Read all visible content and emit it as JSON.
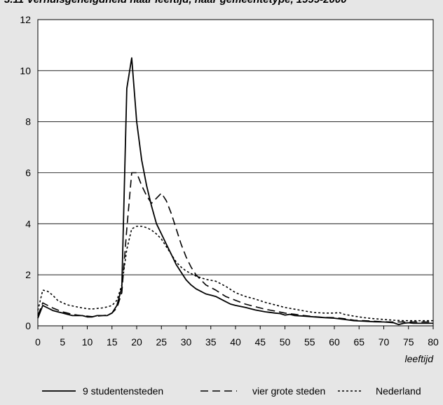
{
  "title_fragment": "3.11 Verhuisgeneigdheid naar leeftijd, naar gemeentetype, 1999-2000",
  "chart_data": {
    "type": "line",
    "xlabel": "leeftijd",
    "ylabel": "",
    "xlim": [
      0,
      80
    ],
    "ylim": [
      0,
      12
    ],
    "xticks": [
      0,
      5,
      10,
      15,
      20,
      25,
      30,
      35,
      40,
      45,
      50,
      55,
      60,
      65,
      70,
      75,
      80
    ],
    "yticks": [
      0,
      2,
      4,
      6,
      8,
      10,
      12
    ],
    "grid": "horizontal",
    "legend_position": "bottom",
    "series": [
      {
        "name": "9 studentensteden",
        "dash": "solid",
        "x": [
          0,
          1,
          2,
          3,
          4,
          5,
          6,
          7,
          8,
          9,
          10,
          11,
          12,
          13,
          14,
          15,
          16,
          17,
          18,
          19,
          20,
          21,
          22,
          23,
          24,
          25,
          26,
          27,
          28,
          29,
          30,
          31,
          32,
          33,
          34,
          35,
          36,
          37,
          38,
          39,
          40,
          42,
          44,
          46,
          48,
          49,
          50,
          51,
          52,
          54,
          56,
          58,
          60,
          62,
          64,
          66,
          68,
          70,
          72,
          73,
          74,
          75,
          76,
          78,
          80
        ],
        "y": [
          0.3,
          0.8,
          0.7,
          0.6,
          0.55,
          0.5,
          0.45,
          0.4,
          0.4,
          0.4,
          0.35,
          0.35,
          0.4,
          0.4,
          0.4,
          0.5,
          0.8,
          1.5,
          9.3,
          10.5,
          8.0,
          6.5,
          5.5,
          4.7,
          4.0,
          3.6,
          3.2,
          2.8,
          2.4,
          2.1,
          1.8,
          1.6,
          1.45,
          1.35,
          1.25,
          1.2,
          1.15,
          1.05,
          0.95,
          0.85,
          0.8,
          0.72,
          0.62,
          0.55,
          0.5,
          0.48,
          0.42,
          0.45,
          0.4,
          0.38,
          0.35,
          0.32,
          0.3,
          0.25,
          0.2,
          0.18,
          0.16,
          0.15,
          0.12,
          0.05,
          0.1,
          0.12,
          0.1,
          0.1,
          0.1
        ]
      },
      {
        "name": "vier grote steden",
        "dash": "dashed",
        "x": [
          0,
          1,
          2,
          3,
          4,
          5,
          6,
          7,
          8,
          9,
          10,
          11,
          12,
          13,
          14,
          15,
          16,
          17,
          18,
          19,
          20,
          21,
          22,
          23,
          24,
          25,
          26,
          27,
          28,
          29,
          30,
          31,
          32,
          34,
          36,
          38,
          40,
          42,
          44,
          46,
          48,
          50,
          52,
          54,
          56,
          58,
          60,
          62,
          64,
          66,
          68,
          70,
          72,
          74,
          76,
          78,
          80
        ],
        "y": [
          0.4,
          0.9,
          0.8,
          0.7,
          0.62,
          0.55,
          0.5,
          0.45,
          0.42,
          0.4,
          0.38,
          0.36,
          0.38,
          0.4,
          0.42,
          0.5,
          0.7,
          1.3,
          3.8,
          6.0,
          6.0,
          5.5,
          5.1,
          4.8,
          5.0,
          5.2,
          4.9,
          4.4,
          3.8,
          3.2,
          2.7,
          2.3,
          2.0,
          1.6,
          1.4,
          1.15,
          1.0,
          0.85,
          0.75,
          0.65,
          0.58,
          0.5,
          0.45,
          0.4,
          0.36,
          0.33,
          0.32,
          0.28,
          0.22,
          0.2,
          0.18,
          0.16,
          0.15,
          0.15,
          0.15,
          0.15,
          0.15
        ]
      },
      {
        "name": "Nederland",
        "dash": "dotted",
        "x": [
          0,
          1,
          2,
          3,
          4,
          5,
          6,
          7,
          8,
          9,
          10,
          11,
          12,
          13,
          14,
          15,
          16,
          17,
          18,
          19,
          20,
          21,
          22,
          23,
          24,
          25,
          26,
          27,
          28,
          29,
          30,
          32,
          34,
          36,
          38,
          40,
          42,
          44,
          46,
          48,
          50,
          52,
          54,
          56,
          58,
          60,
          61,
          62,
          64,
          66,
          68,
          70,
          72,
          74,
          76,
          78,
          80
        ],
        "y": [
          0.6,
          1.4,
          1.35,
          1.2,
          1.0,
          0.9,
          0.82,
          0.78,
          0.74,
          0.7,
          0.67,
          0.66,
          0.68,
          0.7,
          0.74,
          0.8,
          1.0,
          1.6,
          3.0,
          3.8,
          3.9,
          3.9,
          3.85,
          3.75,
          3.6,
          3.4,
          3.1,
          2.8,
          2.5,
          2.3,
          2.15,
          1.95,
          1.82,
          1.75,
          1.55,
          1.3,
          1.15,
          1.05,
          0.92,
          0.82,
          0.72,
          0.65,
          0.58,
          0.52,
          0.5,
          0.5,
          0.52,
          0.45,
          0.38,
          0.32,
          0.28,
          0.25,
          0.22,
          0.2,
          0.2,
          0.2,
          0.2
        ]
      }
    ]
  }
}
